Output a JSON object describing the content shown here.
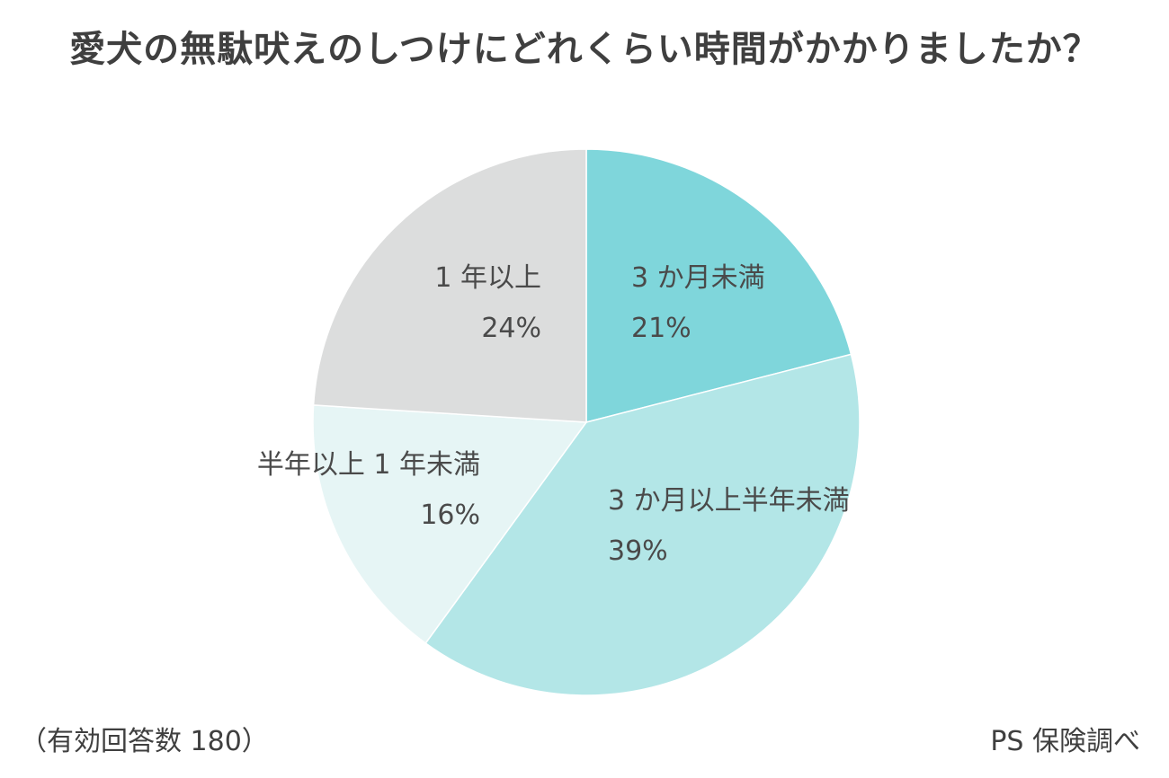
{
  "chart_data": {
    "type": "pie",
    "title": "愛犬の無駄吠えのしつけにどれくらい時間がかかりましたか？",
    "slices": [
      {
        "label": "3 か月未満",
        "value": 21,
        "value_label": "21%",
        "color": "#7fd6db"
      },
      {
        "label": "3 か月以上半年未満",
        "value": 39,
        "value_label": "39%",
        "color": "#b3e6e7"
      },
      {
        "label": "半年以上 1 年未満",
        "value": 16,
        "value_label": "16%",
        "color": "#e6f5f5"
      },
      {
        "label": "1 年以上",
        "value": 24,
        "value_label": "24%",
        "color": "#dcdddd"
      }
    ]
  },
  "footnote": "（有効回答数 180）",
  "source": "PS 保険調べ"
}
